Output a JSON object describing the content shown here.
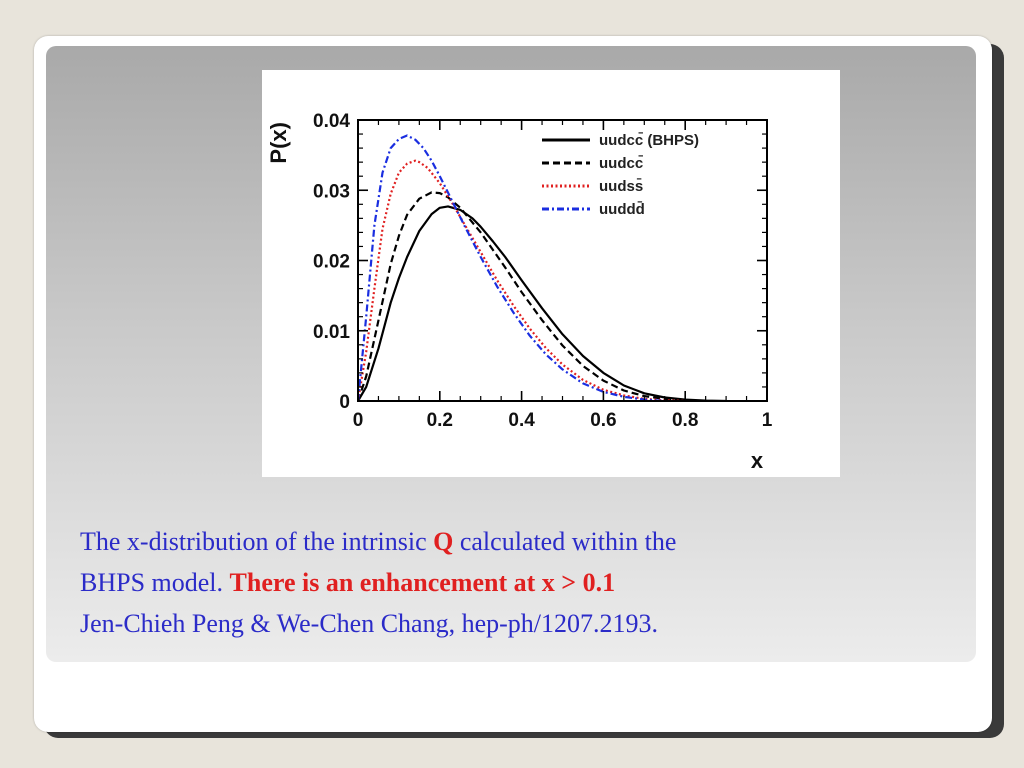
{
  "caption": {
    "line1_a": "The x-distribution of the intrinsic ",
    "line1_q": "Q",
    "line1_b": "  calculated within the",
    "line2_a": "BHPS model. ",
    "line2_red": "There is an enhancement at x > 0.1",
    "line3": "Jen-Chieh Peng & We-Chen Chang, hep-ph/1207.2193."
  },
  "chart_data": {
    "type": "line",
    "xlabel": "x",
    "ylabel": "P(x)",
    "xlim": [
      0,
      1
    ],
    "ylim": [
      0,
      0.04
    ],
    "xticks": [
      "0",
      "0.2",
      "0.4",
      "0.6",
      "0.8",
      "1"
    ],
    "yticks": [
      "0",
      "0.01",
      "0.02",
      "0.03",
      "0.04"
    ],
    "legend_position": "top-right",
    "series": [
      {
        "name": "uudcc̄ (BHPS)",
        "color": "#000000",
        "dash": "solid",
        "x": [
          0,
          0.02,
          0.05,
          0.08,
          0.1,
          0.12,
          0.15,
          0.18,
          0.2,
          0.22,
          0.25,
          0.28,
          0.3,
          0.33,
          0.36,
          0.4,
          0.45,
          0.5,
          0.55,
          0.6,
          0.65,
          0.7,
          0.75,
          0.8,
          0.85,
          0.9
        ],
        "y": [
          0,
          0.002,
          0.0075,
          0.014,
          0.0175,
          0.0205,
          0.0242,
          0.0266,
          0.0275,
          0.0277,
          0.0272,
          0.026,
          0.0248,
          0.0227,
          0.0205,
          0.0172,
          0.0132,
          0.0095,
          0.0064,
          0.004,
          0.0022,
          0.0011,
          0.0005,
          0.0002,
          5e-05,
          0
        ]
      },
      {
        "name": "uudcc̄",
        "color": "#000000",
        "dash": "dashed",
        "x": [
          0,
          0.02,
          0.05,
          0.08,
          0.1,
          0.12,
          0.15,
          0.18,
          0.2,
          0.22,
          0.25,
          0.28,
          0.3,
          0.33,
          0.36,
          0.4,
          0.45,
          0.5,
          0.55,
          0.6,
          0.65,
          0.7,
          0.75,
          0.8,
          0.85
        ],
        "y": [
          0,
          0.0035,
          0.0115,
          0.0195,
          0.0235,
          0.0265,
          0.0288,
          0.0297,
          0.0296,
          0.029,
          0.0275,
          0.0254,
          0.024,
          0.0215,
          0.019,
          0.0155,
          0.0115,
          0.0079,
          0.005,
          0.0029,
          0.0015,
          0.0007,
          0.0003,
          0.0001,
          0
        ]
      },
      {
        "name": "uudss̄",
        "color": "#e02020",
        "dash": "dotted",
        "x": [
          0,
          0.02,
          0.04,
          0.06,
          0.08,
          0.1,
          0.12,
          0.14,
          0.15,
          0.17,
          0.2,
          0.23,
          0.26,
          0.3,
          0.34,
          0.38,
          0.42,
          0.46,
          0.5,
          0.55,
          0.6,
          0.65,
          0.7,
          0.75,
          0.8
        ],
        "y": [
          0,
          0.007,
          0.016,
          0.0245,
          0.0295,
          0.0325,
          0.0338,
          0.0342,
          0.034,
          0.0332,
          0.031,
          0.0282,
          0.0252,
          0.0212,
          0.0172,
          0.0136,
          0.0103,
          0.0075,
          0.0052,
          0.003,
          0.0016,
          0.0008,
          0.0003,
          0.0001,
          0
        ]
      },
      {
        "name": "uuddd̄",
        "color": "#1a2ee0",
        "dash": "dashdot",
        "x": [
          0,
          0.02,
          0.04,
          0.06,
          0.08,
          0.1,
          0.12,
          0.14,
          0.16,
          0.18,
          0.2,
          0.23,
          0.26,
          0.3,
          0.34,
          0.38,
          0.42,
          0.46,
          0.5,
          0.55,
          0.6,
          0.65,
          0.7,
          0.75
        ],
        "y": [
          0,
          0.012,
          0.025,
          0.0325,
          0.036,
          0.0373,
          0.0378,
          0.0372,
          0.036,
          0.0342,
          0.032,
          0.0285,
          0.025,
          0.0205,
          0.0163,
          0.0126,
          0.0093,
          0.0066,
          0.0045,
          0.0025,
          0.0013,
          0.0006,
          0.0002,
          0
        ]
      }
    ]
  }
}
